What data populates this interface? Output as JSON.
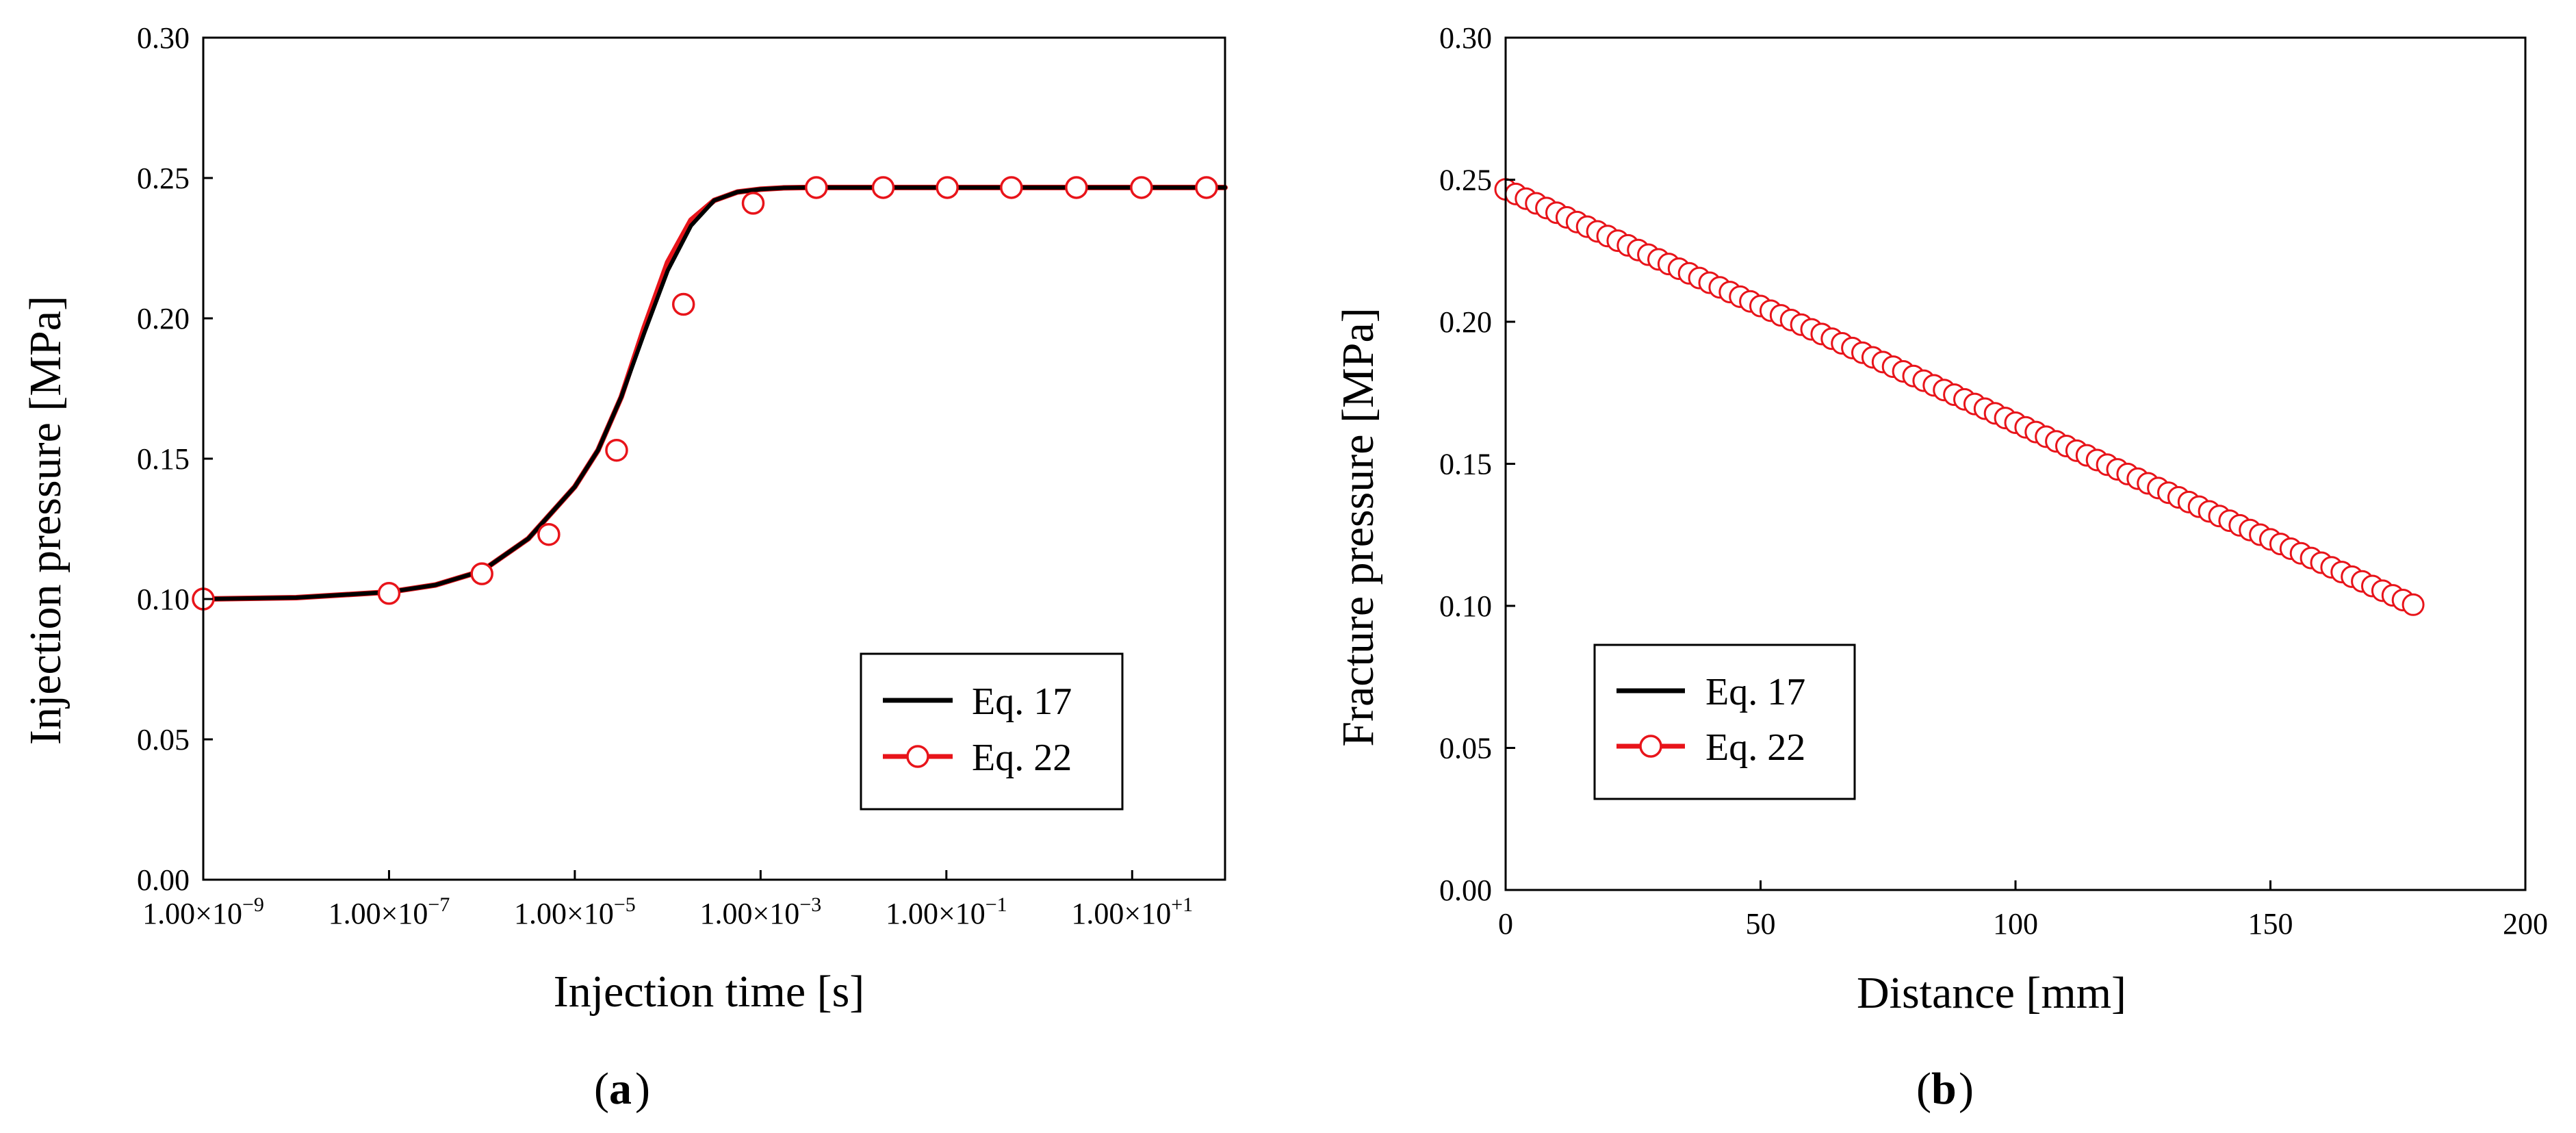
{
  "chart_data": [
    {
      "type": "line",
      "panel_label": "a",
      "xlabel": "Injection time [s]",
      "ylabel": "Injection pressure [MPa]",
      "xscale": "log",
      "xlim_exp": [
        -9,
        2
      ],
      "ylim": [
        0,
        0.3
      ],
      "xticks": [
        {
          "mant": "1.00×10",
          "exp": "−9",
          "pow": -9
        },
        {
          "mant": "1.00×10",
          "exp": "−7",
          "pow": -7
        },
        {
          "mant": "1.00×10",
          "exp": "−5",
          "pow": -5
        },
        {
          "mant": "1.00×10",
          "exp": "−3",
          "pow": -3
        },
        {
          "mant": "1.00×10",
          "exp": "−1",
          "pow": -1
        },
        {
          "mant": "1.00×10",
          "exp": "+1",
          "pow": 1
        }
      ],
      "yticks": [
        "0.00",
        "0.05",
        "0.10",
        "0.15",
        "0.20",
        "0.25",
        "0.30"
      ],
      "legend_position": "bottom-right",
      "series": [
        {
          "name": "Eq. 17",
          "color": "#000000",
          "marker": "none",
          "log_x": [
            -9.0,
            -8.0,
            -7.0,
            -6.5,
            -6.0,
            -5.5,
            -5.0,
            -4.75,
            -4.5,
            -4.25,
            -4.0,
            -3.75,
            -3.5,
            -3.25,
            -3.0,
            -2.75,
            -2.5,
            -2.0,
            -1.0,
            0.0,
            1.0,
            2.0
          ],
          "y": [
            0.1,
            0.1005,
            0.1025,
            0.105,
            0.11,
            0.1215,
            0.14,
            0.153,
            0.172,
            0.195,
            0.217,
            0.233,
            0.242,
            0.245,
            0.246,
            0.2465,
            0.2466,
            0.2466,
            0.2466,
            0.2466,
            0.2466,
            0.2466
          ]
        },
        {
          "name": "Eq. 22",
          "color": "#e8141a",
          "marker": "circle",
          "log_x": [
            -9.0,
            -8.0,
            -7.0,
            -6.5,
            -6.0,
            -5.5,
            -5.0,
            -4.75,
            -4.5,
            -4.25,
            -4.0,
            -3.75,
            -3.5,
            -3.25,
            -3.0,
            -2.75,
            -2.5,
            -2.0,
            -1.0,
            0.0,
            1.0,
            2.0
          ],
          "y": [
            0.1,
            0.1005,
            0.1025,
            0.105,
            0.11,
            0.1215,
            0.14,
            0.153,
            0.172,
            0.197,
            0.22,
            0.235,
            0.242,
            0.245,
            0.246,
            0.2465,
            0.2466,
            0.2466,
            0.2466,
            0.2466,
            0.2466,
            0.2466
          ],
          "marker_log_x": [
            -9.0,
            -7.0,
            -6.0,
            -5.28,
            -4.55,
            -3.83,
            -3.08,
            -2.4,
            -1.68,
            -0.99,
            -0.3,
            0.4,
            1.1,
            1.8
          ],
          "marker_y": [
            0.1,
            0.102,
            0.109,
            0.123,
            0.153,
            0.205,
            0.241,
            0.2466,
            0.2466,
            0.2466,
            0.2466,
            0.2466,
            0.2466,
            0.2466
          ]
        }
      ]
    },
    {
      "type": "line",
      "panel_label": "b",
      "xlabel": "Distance [mm]",
      "ylabel": "Fracture pressure [MPa]",
      "xlim": [
        0,
        200
      ],
      "ylim": [
        0,
        0.3
      ],
      "xticks": [
        "0",
        "50",
        "100",
        "150",
        "200"
      ],
      "yticks": [
        "0.00",
        "0.05",
        "0.10",
        "0.15",
        "0.20",
        "0.25",
        "0.30"
      ],
      "legend_position": "bottom-left",
      "series": [
        {
          "name": "Eq. 17",
          "color": "#000000",
          "marker": "none",
          "x": [
            0,
            178.5
          ],
          "y": [
            0.2466,
            0.1
          ]
        },
        {
          "name": "Eq. 22",
          "color": "#e8141a",
          "marker": "circle",
          "x": [
            0,
            178.5
          ],
          "y": [
            0.2466,
            0.1
          ],
          "marker_spacing_mm": 2
        }
      ]
    }
  ]
}
